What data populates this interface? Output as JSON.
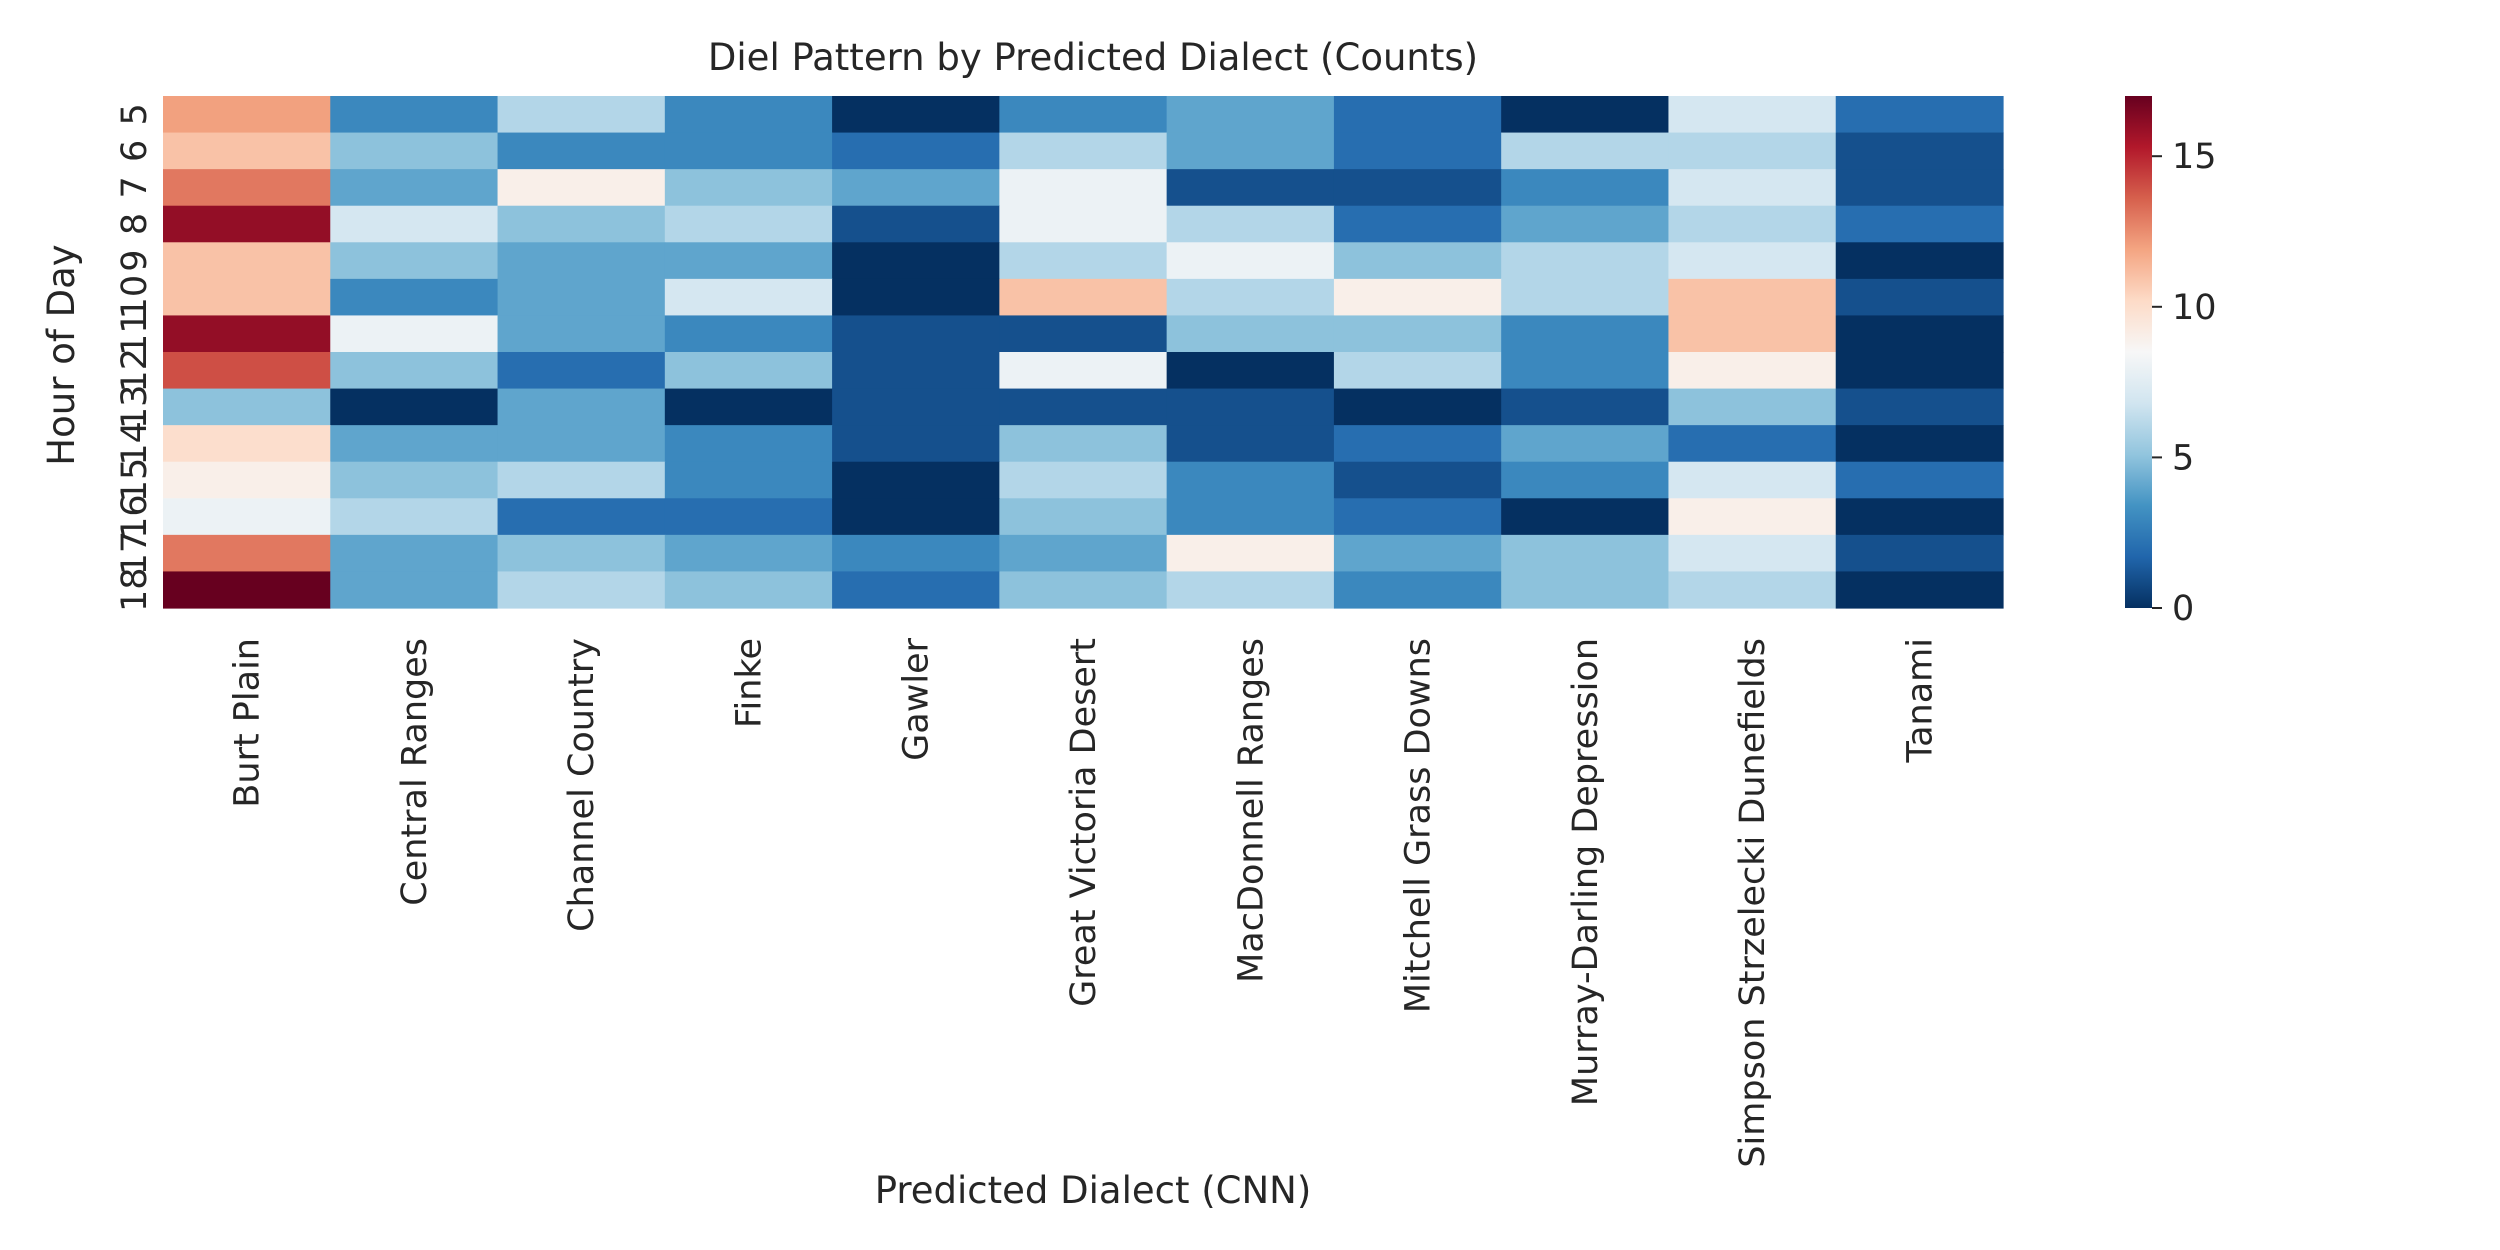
{
  "chart_data": {
    "type": "heatmap",
    "title": "Diel Pattern by Predicted Dialect (Counts)",
    "xlabel": "Predicted Dialect (CNN)",
    "ylabel": "Hour of Day",
    "x_categories": [
      "Burt Plain",
      "Central Ranges",
      "Channel Country",
      "Finke",
      "Gawler",
      "Great Victoria Desert",
      "MacDonnell Ranges",
      "Mitchell Grass Downs",
      "Murray-Darling Depression",
      "Simpson Strzelecki Dunefields",
      "Tanami"
    ],
    "y_categories": [
      "5",
      "6",
      "7",
      "8",
      "9",
      "10",
      "11",
      "12",
      "13",
      "14",
      "15",
      "16",
      "17",
      "18"
    ],
    "values": [
      [
        12,
        3,
        6,
        3,
        0,
        3,
        4,
        2,
        0,
        7,
        2
      ],
      [
        11,
        5,
        3,
        3,
        2,
        6,
        4,
        2,
        6,
        6,
        1
      ],
      [
        13,
        4,
        9,
        5,
        4,
        8,
        1,
        1,
        3,
        7,
        1
      ],
      [
        16,
        7,
        5,
        6,
        1,
        8,
        6,
        2,
        4,
        6,
        2
      ],
      [
        11,
        5,
        4,
        4,
        0,
        6,
        8,
        5,
        6,
        7,
        0
      ],
      [
        11,
        3,
        4,
        7,
        0,
        11,
        6,
        9,
        6,
        11,
        1
      ],
      [
        16,
        8,
        4,
        3,
        1,
        1,
        5,
        5,
        3,
        11,
        0
      ],
      [
        14,
        5,
        2,
        5,
        1,
        8,
        0,
        6,
        3,
        9,
        0
      ],
      [
        5,
        0,
        4,
        0,
        1,
        1,
        1,
        0,
        1,
        5,
        1
      ],
      [
        10,
        4,
        4,
        3,
        1,
        5,
        1,
        2,
        4,
        2,
        0
      ],
      [
        9,
        5,
        6,
        3,
        0,
        6,
        3,
        1,
        3,
        7,
        2
      ],
      [
        8,
        6,
        2,
        2,
        0,
        5,
        3,
        2,
        0,
        9,
        0
      ],
      [
        13,
        4,
        5,
        4,
        3,
        4,
        9,
        4,
        5,
        7,
        1
      ],
      [
        17,
        4,
        6,
        5,
        2,
        5,
        6,
        3,
        5,
        6,
        0
      ]
    ],
    "vmin": 0,
    "vmax": 17,
    "colormap": "RdBu_r",
    "colorbar_ticks": [
      0,
      5,
      10,
      15
    ],
    "colors": {
      "low": "#053061",
      "mid": "#f7f7f7",
      "high": "#67001f"
    }
  }
}
